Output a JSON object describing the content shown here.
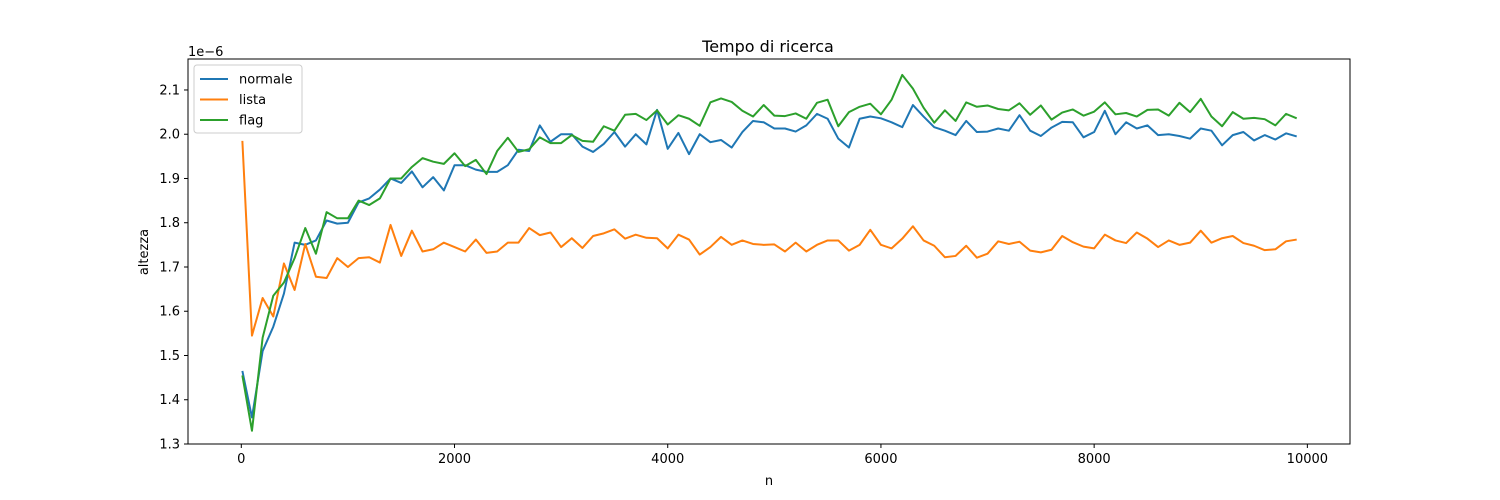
{
  "chart_data": {
    "type": "line",
    "title": "Tempo di ricerca",
    "xlabel": "n",
    "ylabel": "altezza",
    "y_offset_text": "1e−6",
    "y_scale": 1e-06,
    "xlim": [
      -500,
      10400
    ],
    "ylim": [
      1.3,
      2.17
    ],
    "x_ticks": [
      0,
      2000,
      4000,
      6000,
      8000,
      10000
    ],
    "x_tick_labels": [
      "0",
      "2000",
      "4000",
      "6000",
      "8000",
      "10000"
    ],
    "y_ticks": [
      1.3,
      1.4,
      1.5,
      1.6,
      1.7,
      1.8,
      1.9,
      2.0,
      2.1
    ],
    "y_tick_labels": [
      "1.3",
      "1.4",
      "1.5",
      "1.6",
      "1.7",
      "1.8",
      "1.9",
      "2.0",
      "2.1"
    ],
    "grid": false,
    "legend_position": "top-left",
    "x": [
      10,
      100,
      200,
      300,
      400,
      500,
      600,
      700,
      800,
      900,
      1000,
      1100,
      1200,
      1300,
      1400,
      1500,
      1600,
      1700,
      1800,
      1900,
      2000,
      2100,
      2200,
      2300,
      2400,
      2500,
      2600,
      2700,
      2800,
      2900,
      3000,
      3100,
      3200,
      3300,
      3400,
      3500,
      3600,
      3700,
      3800,
      3900,
      4000,
      4100,
      4200,
      4300,
      4400,
      4500,
      4600,
      4700,
      4800,
      4900,
      5000,
      5100,
      5200,
      5300,
      5400,
      5500,
      5600,
      5700,
      5800,
      5900,
      6000,
      6100,
      6200,
      6300,
      6400,
      6500,
      6600,
      6700,
      6800,
      6900,
      7000,
      7100,
      7200,
      7300,
      7400,
      7500,
      7600,
      7700,
      7800,
      7900,
      8000,
      8100,
      8200,
      8300,
      8400,
      8500,
      8600,
      8700,
      8800,
      8900,
      9000,
      9100,
      9200,
      9300,
      9400,
      9500,
      9600,
      9700,
      9800,
      9900
    ],
    "series": [
      {
        "name": "normale",
        "color": "#1f77b4",
        "values": [
          1.465,
          1.36,
          1.51,
          1.565,
          1.64,
          1.755,
          1.75,
          1.76,
          1.805,
          1.798,
          1.8,
          1.846,
          1.855,
          1.875,
          1.9,
          1.89,
          1.916,
          1.88,
          1.903,
          1.873,
          1.93,
          1.93,
          1.92,
          1.915,
          1.915,
          1.93,
          1.965,
          1.962,
          2.02,
          1.983,
          2.0,
          2.0,
          1.972,
          1.96,
          1.978,
          2.005,
          1.972,
          2.0,
          1.977,
          2.055,
          1.967,
          2.003,
          1.955,
          2.0,
          1.982,
          1.987,
          1.97,
          2.005,
          2.03,
          2.027,
          2.013,
          2.013,
          2.006,
          2.02,
          2.046,
          2.035,
          1.99,
          1.97,
          2.035,
          2.04,
          2.036,
          2.027,
          2.016,
          2.066,
          2.04,
          2.016,
          2.008,
          1.998,
          2.03,
          2.005,
          2.006,
          2.013,
          2.008,
          2.043,
          2.008,
          1.996,
          2.015,
          2.028,
          2.027,
          1.993,
          2.005,
          2.053,
          2.0,
          2.027,
          2.013,
          2.02,
          1.998,
          2.0,
          1.996,
          1.99,
          2.013,
          2.008,
          1.975,
          1.998,
          2.005,
          1.986,
          1.998,
          1.988,
          2.002,
          1.995
        ]
      },
      {
        "name": "lista",
        "color": "#ff7f0e",
        "values": [
          1.985,
          1.545,
          1.63,
          1.588,
          1.708,
          1.648,
          1.752,
          1.678,
          1.675,
          1.72,
          1.7,
          1.72,
          1.722,
          1.71,
          1.795,
          1.725,
          1.782,
          1.735,
          1.74,
          1.755,
          1.745,
          1.735,
          1.762,
          1.732,
          1.735,
          1.755,
          1.755,
          1.788,
          1.772,
          1.778,
          1.745,
          1.765,
          1.743,
          1.77,
          1.776,
          1.785,
          1.764,
          1.773,
          1.766,
          1.765,
          1.742,
          1.773,
          1.762,
          1.728,
          1.745,
          1.768,
          1.75,
          1.76,
          1.752,
          1.75,
          1.751,
          1.735,
          1.755,
          1.735,
          1.75,
          1.76,
          1.76,
          1.737,
          1.75,
          1.784,
          1.75,
          1.742,
          1.764,
          1.792,
          1.76,
          1.748,
          1.722,
          1.725,
          1.748,
          1.721,
          1.73,
          1.758,
          1.752,
          1.757,
          1.737,
          1.733,
          1.739,
          1.77,
          1.756,
          1.746,
          1.742,
          1.773,
          1.76,
          1.754,
          1.778,
          1.764,
          1.745,
          1.76,
          1.75,
          1.755,
          1.782,
          1.755,
          1.765,
          1.77,
          1.754,
          1.748,
          1.738,
          1.74,
          1.758,
          1.762
        ]
      },
      {
        "name": "flag",
        "color": "#2ca02c",
        "values": [
          1.455,
          1.33,
          1.54,
          1.635,
          1.665,
          1.72,
          1.788,
          1.73,
          1.824,
          1.81,
          1.81,
          1.85,
          1.84,
          1.855,
          1.9,
          1.9,
          1.926,
          1.946,
          1.938,
          1.933,
          1.957,
          1.928,
          1.942,
          1.91,
          1.962,
          1.992,
          1.96,
          1.966,
          1.993,
          1.98,
          1.98,
          1.998,
          1.985,
          1.983,
          2.018,
          2.008,
          2.044,
          2.046,
          2.032,
          2.054,
          2.022,
          2.043,
          2.035,
          2.019,
          2.072,
          2.081,
          2.073,
          2.053,
          2.04,
          2.066,
          2.042,
          2.041,
          2.047,
          2.035,
          2.071,
          2.078,
          2.018,
          2.05,
          2.062,
          2.069,
          2.045,
          2.078,
          2.134,
          2.103,
          2.06,
          2.026,
          2.054,
          2.03,
          2.072,
          2.062,
          2.065,
          2.057,
          2.054,
          2.07,
          2.044,
          2.065,
          2.033,
          2.049,
          2.056,
          2.042,
          2.051,
          2.072,
          2.045,
          2.048,
          2.04,
          2.055,
          2.056,
          2.042,
          2.071,
          2.05,
          2.08,
          2.04,
          2.018,
          2.05,
          2.035,
          2.037,
          2.034,
          2.02,
          2.046,
          2.036
        ]
      }
    ]
  }
}
